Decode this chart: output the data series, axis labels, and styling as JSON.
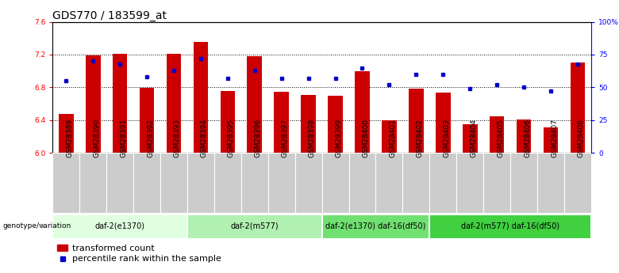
{
  "title": "GDS770 / 183599_at",
  "samples": [
    "GSM28389",
    "GSM28390",
    "GSM28391",
    "GSM28392",
    "GSM28393",
    "GSM28394",
    "GSM28395",
    "GSM28396",
    "GSM28397",
    "GSM28398",
    "GSM28399",
    "GSM28400",
    "GSM28401",
    "GSM28402",
    "GSM28403",
    "GSM28404",
    "GSM28405",
    "GSM28406",
    "GSM28407",
    "GSM28408"
  ],
  "transformed_count": [
    6.48,
    7.19,
    7.21,
    6.79,
    7.21,
    7.35,
    6.76,
    7.18,
    6.75,
    6.71,
    6.7,
    7.0,
    6.4,
    6.78,
    6.74,
    6.35,
    6.45,
    6.41,
    6.31,
    7.1
  ],
  "percentile_rank": [
    55,
    70,
    68,
    58,
    63,
    72,
    57,
    63,
    57,
    57,
    57,
    65,
    52,
    60,
    60,
    49,
    52,
    50,
    47,
    68
  ],
  "ylim_left": [
    6.0,
    7.6
  ],
  "ylim_right": [
    0,
    100
  ],
  "yticks_left": [
    6.0,
    6.4,
    6.8,
    7.2,
    7.6
  ],
  "yticks_right": [
    0,
    25,
    50,
    75,
    100
  ],
  "ytick_labels_right": [
    "0",
    "25",
    "50",
    "75",
    "100%"
  ],
  "bar_color": "#cc0000",
  "dot_color": "#0000cc",
  "bar_width": 0.55,
  "groups": [
    {
      "label": "daf-2(e1370)",
      "start": 0,
      "end": 4,
      "color": "#e0ffe0"
    },
    {
      "label": "daf-2(m577)",
      "start": 5,
      "end": 9,
      "color": "#b0f0b0"
    },
    {
      "label": "daf-2(e1370) daf-16(df50)",
      "start": 10,
      "end": 13,
      "color": "#70e070"
    },
    {
      "label": "daf-2(m577) daf-16(df50)",
      "start": 14,
      "end": 19,
      "color": "#40d040"
    }
  ],
  "sample_bg_color": "#cccccc",
  "genotype_label": "genotype/variation",
  "legend_bar_label": "transformed count",
  "legend_dot_label": "percentile rank within the sample",
  "title_fontsize": 10,
  "tick_fontsize": 6.5,
  "label_fontsize": 8,
  "grid_ticks": [
    6.4,
    6.8,
    7.2
  ]
}
